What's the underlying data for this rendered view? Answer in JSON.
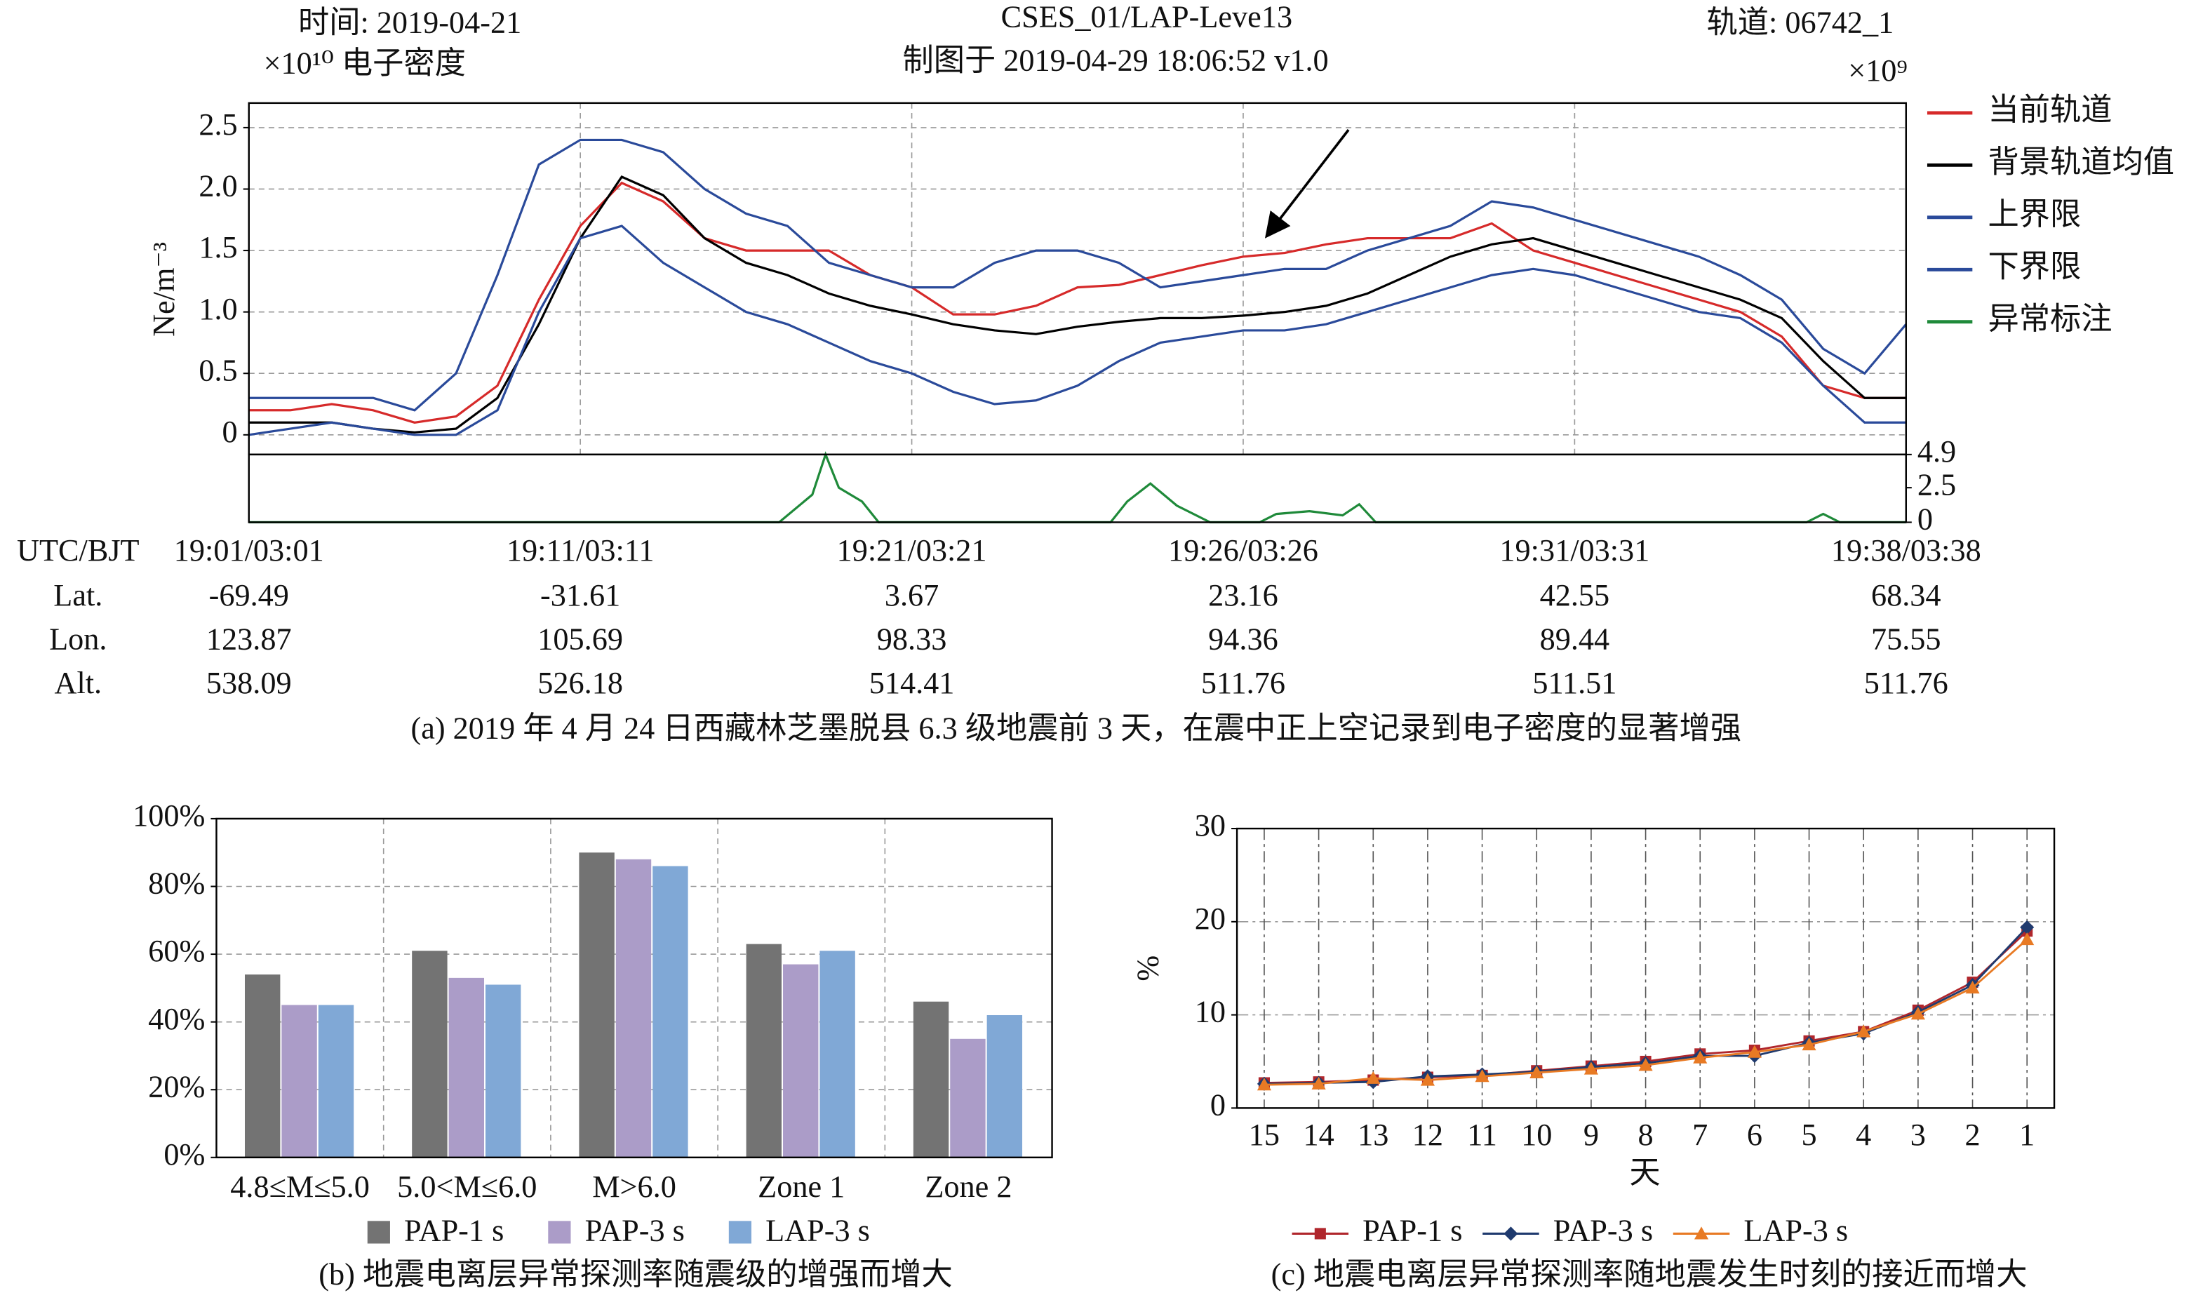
{
  "chart_data": [
    {
      "type": "line",
      "title": "CSES_01/LAP-Leve13",
      "subtitle": "制图于 2019-04-29 18:06:52 v1.0",
      "date_label": "时间: 2019-04-21",
      "orbit_label": "轨道: 06742_1",
      "scale_label": "×10¹⁰ 电子密度",
      "ylabel": "Ne/m⁻³",
      "caption": "(a) 2019 年 4 月 24 日西藏林芝墨脱县 6.3 级地震前 3 天，在震中正上空记录到电子密度的显著增强",
      "x_header": "UTC/BJT",
      "x": [
        0,
        0.125,
        0.25,
        0.375,
        0.5,
        0.625,
        0.75,
        0.875,
        1,
        1.125,
        1.25,
        1.375,
        1.5,
        1.625,
        1.75,
        1.875,
        2,
        2.125,
        2.25,
        2.375,
        2.5,
        2.625,
        2.75,
        2.875,
        3,
        3.125,
        3.25,
        3.375,
        3.5,
        3.625,
        3.75,
        3.875,
        4,
        4.125,
        4.25,
        4.375,
        4.5,
        4.625,
        4.75,
        4.875,
        5
      ],
      "xlim": [
        0,
        5
      ],
      "xticks": [
        {
          "value": 0,
          "label": "19:01/03:01"
        },
        {
          "value": 1,
          "label": "19:11/03:11"
        },
        {
          "value": 2,
          "label": "19:21/03:21"
        },
        {
          "value": 3,
          "label": "19:26/03:26"
        },
        {
          "value": 4,
          "label": "19:31/03:31"
        },
        {
          "value": 5,
          "label": "19:38/03:38"
        }
      ],
      "position_rows": [
        {
          "label": "Lat.",
          "values": [
            -69.49,
            -31.61,
            3.67,
            23.16,
            42.55,
            68.34
          ]
        },
        {
          "label": "Lon.",
          "values": [
            123.87,
            105.69,
            98.33,
            94.36,
            89.44,
            75.55
          ]
        },
        {
          "label": "Alt.",
          "values": [
            538.09,
            526.18,
            514.41,
            511.76,
            511.51,
            511.76
          ]
        }
      ],
      "ylim": [
        -0.16,
        2.7
      ],
      "yticks": [
        0,
        0.5,
        {
          "value": 1,
          "label": "1.0"
        },
        1.5,
        {
          "value": 2,
          "label": "2.0"
        },
        2.5
      ],
      "grid": true,
      "series": [
        {
          "name": "当前轨道",
          "color": "#d62a2a",
          "values": [
            0.2,
            0.2,
            0.25,
            0.2,
            0.1,
            0.15,
            0.4,
            1.1,
            1.7,
            2.05,
            1.9,
            1.6,
            1.5,
            1.5,
            1.5,
            1.3,
            1.2,
            0.98,
            0.98,
            1.05,
            1.2,
            1.22,
            1.3,
            1.38,
            1.45,
            1.48,
            1.55,
            1.6,
            1.6,
            1.6,
            1.72,
            1.5,
            1.4,
            1.3,
            1.2,
            1.1,
            1.0,
            0.8,
            0.4,
            0.3,
            0.3
          ]
        },
        {
          "name": "背景轨道均值",
          "color": "#000000",
          "values": [
            0.1,
            0.1,
            0.1,
            0.05,
            0.02,
            0.05,
            0.3,
            0.9,
            1.6,
            2.1,
            1.95,
            1.6,
            1.4,
            1.3,
            1.15,
            1.05,
            0.98,
            0.9,
            0.85,
            0.82,
            0.88,
            0.92,
            0.95,
            0.95,
            0.97,
            1.0,
            1.05,
            1.15,
            1.3,
            1.45,
            1.55,
            1.6,
            1.5,
            1.4,
            1.3,
            1.2,
            1.1,
            0.95,
            0.6,
            0.3,
            0.3
          ]
        },
        {
          "name": "上界限",
          "color": "#2a4a9a",
          "values": [
            0.3,
            0.3,
            0.3,
            0.3,
            0.2,
            0.5,
            1.3,
            2.2,
            2.4,
            2.4,
            2.3,
            2.0,
            1.8,
            1.7,
            1.4,
            1.3,
            1.2,
            1.2,
            1.4,
            1.5,
            1.5,
            1.4,
            1.2,
            1.25,
            1.3,
            1.35,
            1.35,
            1.5,
            1.6,
            1.7,
            1.9,
            1.85,
            1.75,
            1.65,
            1.55,
            1.45,
            1.3,
            1.1,
            0.7,
            0.5,
            0.9
          ]
        },
        {
          "name": "下界限",
          "color": "#2a4a9a",
          "values": [
            0.0,
            0.05,
            0.1,
            0.05,
            0.0,
            0.0,
            0.2,
            1.0,
            1.6,
            1.7,
            1.4,
            1.2,
            1.0,
            0.9,
            0.75,
            0.6,
            0.5,
            0.35,
            0.25,
            0.28,
            0.4,
            0.6,
            0.75,
            0.8,
            0.85,
            0.85,
            0.9,
            1.0,
            1.1,
            1.2,
            1.3,
            1.35,
            1.3,
            1.2,
            1.1,
            1.0,
            0.95,
            0.75,
            0.4,
            0.1,
            0.1
          ]
        }
      ]
    },
    {
      "type": "line",
      "scale_label": "×10⁹",
      "x": [
        0,
        1.6,
        1.7,
        1.74,
        1.78,
        1.85,
        1.9,
        2.6,
        2.65,
        2.72,
        2.8,
        2.9,
        3.05,
        3.1,
        3.2,
        3.3,
        3.35,
        3.4,
        4.7,
        4.75,
        4.8,
        5
      ],
      "xlim": [
        0,
        5
      ],
      "ylim": [
        0,
        4.9
      ],
      "yticks": [
        4.9,
        2.5,
        0
      ],
      "grid": false,
      "series": [
        {
          "name": "异常标注",
          "color": "#1f8a3a",
          "values": [
            0,
            0,
            2,
            4.9,
            2.5,
            1.5,
            0,
            0,
            1.5,
            2.8,
            1.2,
            0,
            0,
            0.6,
            0.8,
            0.5,
            1.3,
            0,
            0,
            0.6,
            0,
            0
          ]
        }
      ]
    },
    {
      "type": "bar",
      "caption": "(b) 地震电离层异常探测率随震级的增强而增大",
      "categories": [
        "4.8≤M≤5.0",
        "5.0<M≤6.0",
        "M>6.0",
        "Zone 1",
        "Zone 2"
      ],
      "ylim": [
        0,
        100
      ],
      "yticks": [
        {
          "value": 0,
          "label": "0%"
        },
        {
          "value": 20,
          "label": "20%"
        },
        {
          "value": 40,
          "label": "40%"
        },
        {
          "value": 60,
          "label": "60%"
        },
        {
          "value": 80,
          "label": "80%"
        },
        {
          "value": 100,
          "label": "100%"
        }
      ],
      "grid": true,
      "series": [
        {
          "name": "PAP-1 s",
          "color": "#737373",
          "values": [
            54,
            61,
            90,
            63,
            46
          ]
        },
        {
          "name": "PAP-3 s",
          "color": "#ab9cc8",
          "values": [
            45,
            53,
            88,
            57,
            35
          ]
        },
        {
          "name": "LAP-3 s",
          "color": "#80a8d6",
          "values": [
            45,
            51,
            86,
            61,
            42
          ]
        }
      ]
    },
    {
      "type": "line",
      "caption": "(c) 地震电离层异常探测率随地震发生时刻的接近而增大",
      "xlabel": "天",
      "ylabel": "%",
      "categories": [
        "15",
        "14",
        "13",
        "12",
        "11",
        "10",
        "9",
        "8",
        "7",
        "6",
        "5",
        "4",
        "3",
        "2",
        "1"
      ],
      "ylim": [
        0,
        30
      ],
      "yticks": [
        0,
        10,
        20,
        30
      ],
      "grid": true,
      "series": [
        {
          "name": "PAP-1 s",
          "color": "#b0262c",
          "marker": "square",
          "values": [
            2.7,
            2.8,
            3.0,
            3.3,
            3.5,
            4.0,
            4.5,
            5.0,
            5.8,
            6.2,
            7.2,
            8.2,
            10.5,
            13.5,
            19.0
          ]
        },
        {
          "name": "PAP-3 s",
          "color": "#1f3a6e",
          "marker": "diamond",
          "values": [
            2.6,
            2.7,
            2.8,
            3.4,
            3.6,
            3.9,
            4.4,
            4.8,
            5.6,
            5.6,
            7.0,
            8.0,
            10.3,
            13.2,
            19.4
          ]
        },
        {
          "name": "LAP-3 s",
          "color": "#e87a24",
          "marker": "triangle",
          "values": [
            2.5,
            2.6,
            3.2,
            3.0,
            3.4,
            3.8,
            4.2,
            4.6,
            5.4,
            6.0,
            6.8,
            8.2,
            10.1,
            12.9,
            18.1
          ]
        }
      ]
    }
  ]
}
